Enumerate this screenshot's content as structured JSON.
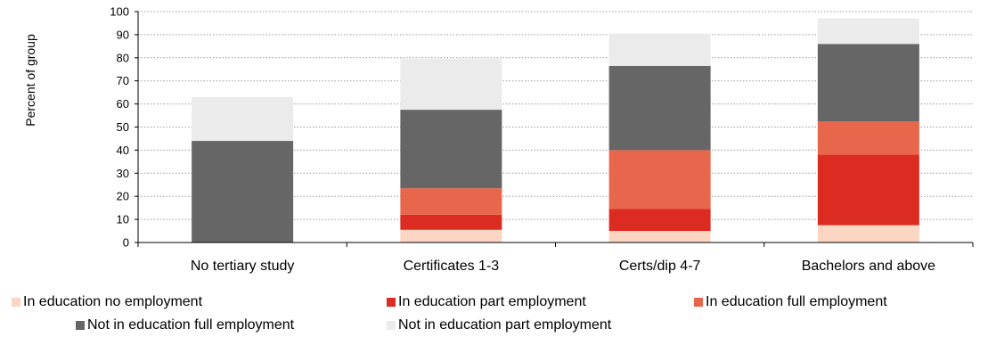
{
  "chart_data": {
    "type": "bar",
    "stacked": true,
    "ylabel": "Percent of group",
    "xlabel": "",
    "ylim": [
      0,
      100
    ],
    "yticks": [
      0,
      10,
      20,
      30,
      40,
      50,
      60,
      70,
      80,
      90,
      100
    ],
    "grid": true,
    "legend_position": "bottom",
    "categories": [
      "No tertiary study",
      "Certificates 1-3",
      "Certs/dip 4-7",
      "Bachelors and above"
    ],
    "series": [
      {
        "name": "In education no employment",
        "color": "#FCD5C3",
        "values": [
          0,
          5.5,
          5,
          7.5
        ]
      },
      {
        "name": "In education part employment",
        "color": "#DC2B20",
        "values": [
          0,
          6.5,
          9.5,
          30.5
        ]
      },
      {
        "name": "In education full employment",
        "color": "#E8664C",
        "values": [
          0,
          11.5,
          25.5,
          14.5
        ]
      },
      {
        "name": "Not in education full employment",
        "color": "#666666",
        "values": [
          44,
          34,
          36.5,
          33.5
        ]
      },
      {
        "name": "Not in education part employment",
        "color": "#EBEBEB",
        "values": [
          19,
          22,
          14,
          11
        ]
      }
    ]
  }
}
